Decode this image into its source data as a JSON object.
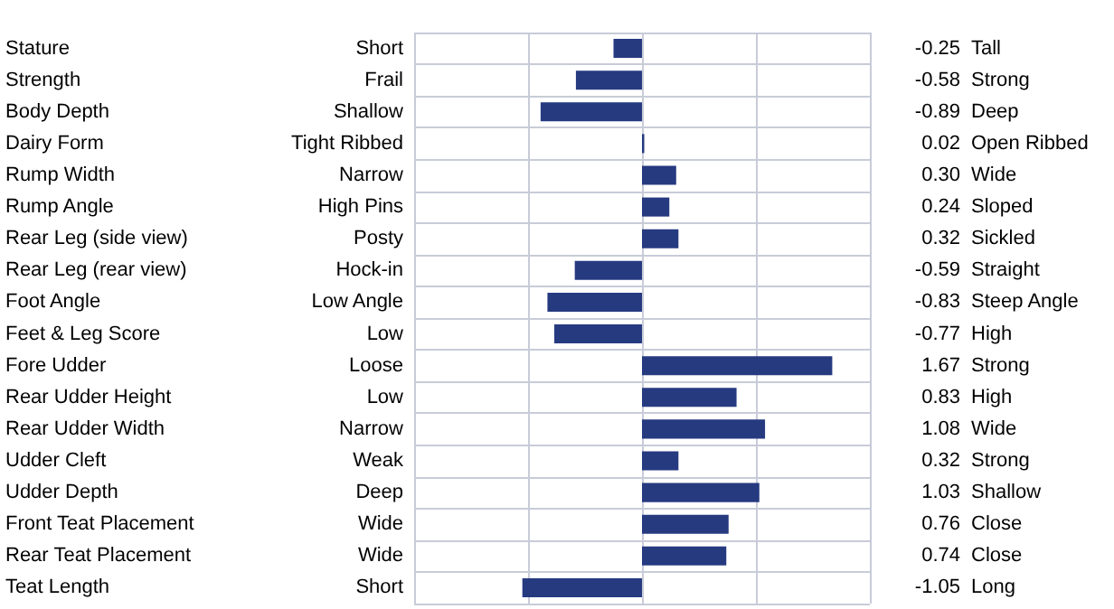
{
  "chart_data": {
    "type": "bar",
    "orientation": "horizontal",
    "categories": [
      "Stature",
      "Strength",
      "Body Depth",
      "Dairy Form",
      "Rump Width",
      "Rump Angle",
      "Rear Leg (side view)",
      "Rear Leg (rear view)",
      "Foot Angle",
      "Feet & Leg Score",
      "Fore Udder",
      "Rear Udder Height",
      "Rear Udder Width",
      "Udder Cleft",
      "Udder Depth",
      "Front Teat Placement",
      "Rear Teat Placement",
      "Teat Length"
    ],
    "values": [
      -0.25,
      -0.58,
      -0.89,
      0.02,
      0.3,
      0.24,
      0.32,
      -0.59,
      -0.83,
      -0.77,
      1.67,
      0.83,
      1.08,
      0.32,
      1.03,
      0.76,
      0.74,
      -1.05
    ],
    "value_labels": [
      "-0.25",
      "-0.58",
      "-0.89",
      "0.02",
      "0.30",
      "0.24",
      "0.32",
      "-0.59",
      "-0.83",
      "-0.77",
      "1.67",
      "0.83",
      "1.08",
      "0.32",
      "1.03",
      "0.76",
      "0.74",
      "-1.05"
    ],
    "color": "#263a80",
    "xlim": [
      -2,
      2
    ],
    "xticks": [
      {
        "value": -2,
        "label": null
      },
      {
        "value": -1,
        "label": null
      },
      {
        "value": 0,
        "label": null
      },
      {
        "value": 1,
        "label": null
      },
      {
        "value": 2,
        "label": null
      }
    ],
    "tick_labels": "y",
    "grid": true,
    "annotations": [
      "Short",
      "Tall",
      "Frail",
      "Strong",
      "Shallow",
      "Deep",
      "Tight Ribbed",
      "Open Ribbed",
      "Narrow",
      "Wide",
      "High Pins",
      "Sloped",
      "Posty",
      "Sickled",
      "Hock-in",
      "Straight",
      "Low Angle",
      "Steep Angle",
      "Low",
      "High",
      "Loose",
      "Strong",
      "Low",
      "High",
      "Narrow",
      "Wide",
      "Weak",
      "Strong",
      "Deep",
      "Shallow",
      "Wide",
      "Close",
      "Wide",
      "Close",
      "Short",
      "Long"
    ]
  }
}
